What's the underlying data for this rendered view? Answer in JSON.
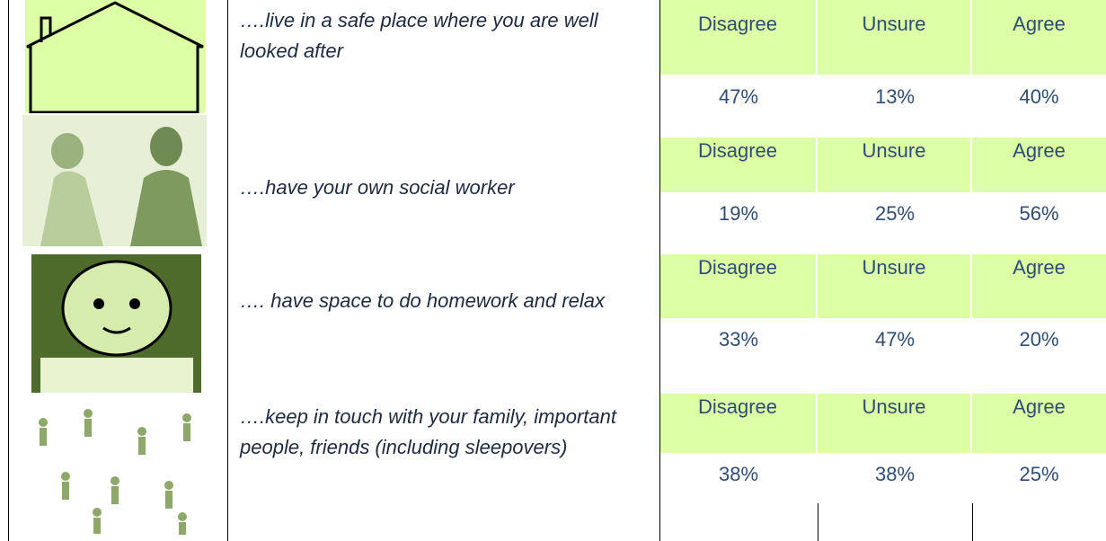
{
  "rows": [
    {
      "statement": "….live in a safe place where you are well looked after",
      "labels": [
        "Disagree",
        "Unsure",
        "Agree"
      ],
      "values": [
        "47%",
        "13%",
        "40%"
      ]
    },
    {
      "statement": "….have your own social worker",
      "labels": [
        "Disagree",
        "Unsure",
        "Agree"
      ],
      "values": [
        "19%",
        "25%",
        "56%"
      ]
    },
    {
      "statement": "…. have space to do homework and relax",
      "labels": [
        "Disagree",
        "Unsure",
        "Agree"
      ],
      "values": [
        "33%",
        "47%",
        "20%"
      ]
    },
    {
      "statement": "….keep in touch with your family, important people, friends (including sleepovers)",
      "labels": [
        "Disagree",
        "Unsure",
        "Agree"
      ],
      "values": [
        "38%",
        "38%",
        "25%"
      ]
    }
  ]
}
